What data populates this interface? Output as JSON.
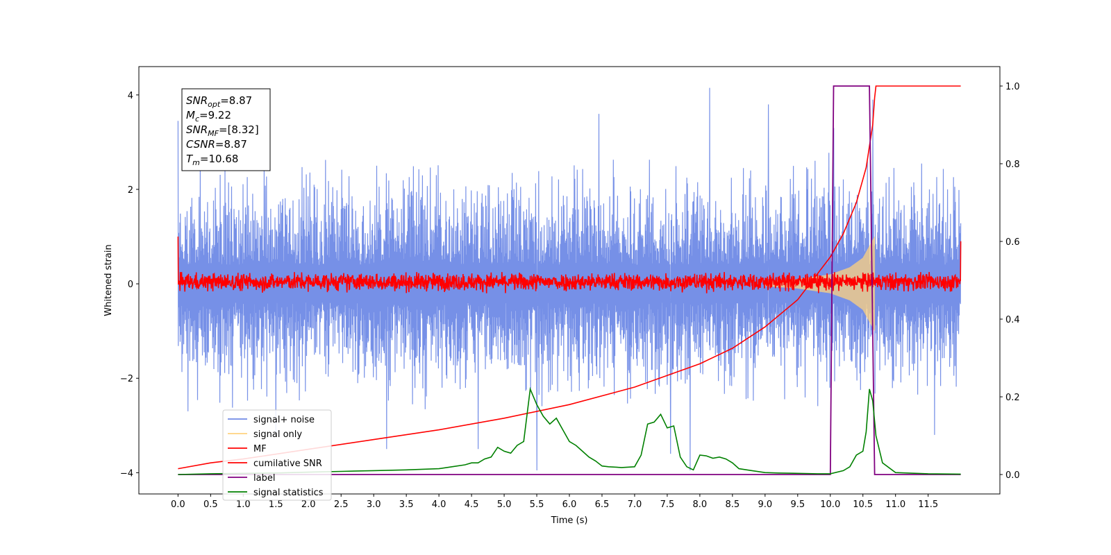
{
  "chart_data": {
    "type": "line",
    "xlabel": "Time (s)",
    "ylabel": "Whitened strain",
    "xlim": [
      -0.6,
      12.6
    ],
    "ylim": [
      -4.45,
      4.6
    ],
    "y2lim": [
      -0.05,
      1.05
    ],
    "x_ticks": [
      0.0,
      0.5,
      1.0,
      1.5,
      2.0,
      2.5,
      3.0,
      3.5,
      4.0,
      4.5,
      5.0,
      5.5,
      6.0,
      6.5,
      7.0,
      7.5,
      8.0,
      8.5,
      9.0,
      9.5,
      10.0,
      10.5,
      11.0,
      11.5
    ],
    "x_tick_labels": [
      "0.0",
      "0.5",
      "1.0",
      "1.5",
      "2.0",
      "2.5",
      "3.0",
      "3.5",
      "4.0",
      "4.5",
      "5.0",
      "5.5",
      "6.0",
      "6.5",
      "7.0",
      "7.5",
      "8.0",
      "8.5",
      "9.0",
      "9.5",
      "10.0",
      "10.5",
      "11.0",
      "11.5"
    ],
    "y_ticks": [
      -4,
      -2,
      0,
      2,
      4
    ],
    "y_tick_labels": [
      "−4",
      "−2",
      "0",
      "2",
      "4"
    ],
    "y2_ticks": [
      0.0,
      0.2,
      0.4,
      0.6,
      0.8,
      1.0
    ],
    "y2_tick_labels": [
      "0.0",
      "0.2",
      "0.4",
      "0.6",
      "0.8",
      "1.0"
    ],
    "annotation": [
      {
        "base": "SNR",
        "sub": "opt",
        "value": "=8.87"
      },
      {
        "base": "M",
        "sub": "c",
        "value": "=9.22"
      },
      {
        "base": "SNR",
        "sub": "MF",
        "value": "=[8.32]"
      },
      {
        "base": "CSNR",
        "sub": "",
        "value": "=8.87"
      },
      {
        "base": "T",
        "sub": "m",
        "value": "=10.68"
      }
    ],
    "legend": {
      "position": "lower-left",
      "entries": [
        {
          "label": "signal+ noise",
          "color": "#6f8ae6"
        },
        {
          "label": "signal only",
          "color": "#ffd27f"
        },
        {
          "label": "MF",
          "color": "#ff0000"
        },
        {
          "label": "cumilative SNR",
          "color": "#ff0000"
        },
        {
          "label": "label",
          "color": "#800080"
        },
        {
          "label": "signal statistics",
          "color": "#008000"
        }
      ]
    },
    "series": [
      {
        "name": "signal+ noise",
        "axis": "left",
        "color": "#6f8ae6",
        "x": [
          0.0,
          12.0
        ],
        "envelope_upper": [
          2.4,
          2.4
        ],
        "envelope_lower": [
          -2.2,
          -2.2
        ],
        "spikes": [
          [
            0.0,
            3.45
          ],
          [
            1.5,
            -3.2
          ],
          [
            3.2,
            -3.5
          ],
          [
            4.6,
            -3.5
          ],
          [
            5.5,
            -3.95
          ],
          [
            6.45,
            3.6
          ],
          [
            7.55,
            -3.6
          ],
          [
            7.85,
            -3.95
          ],
          [
            8.15,
            4.15
          ],
          [
            9.05,
            3.8
          ],
          [
            10.05,
            3.3
          ],
          [
            10.65,
            3.9
          ],
          [
            11.6,
            -3.2
          ]
        ]
      },
      {
        "name": "signal only",
        "axis": "left",
        "color": "#ffd27f",
        "x": [
          9.0,
          9.5,
          10.0,
          10.3,
          10.5,
          10.6,
          10.68
        ],
        "amplitude": [
          0.05,
          0.1,
          0.2,
          0.35,
          0.55,
          0.8,
          1.0
        ]
      },
      {
        "name": "MF",
        "axis": "left",
        "color": "#ff0000",
        "x": [
          0.0,
          12.0
        ],
        "envelope_upper": [
          0.25,
          0.25
        ],
        "envelope_lower": [
          -0.2,
          -0.2
        ],
        "endpoints": [
          [
            0.0,
            1.0
          ],
          [
            12.0,
            0.9
          ]
        ]
      },
      {
        "name": "cumilative SNR",
        "axis": "right",
        "color": "#ff0000",
        "x": [
          0.0,
          0.5,
          1.0,
          2.0,
          3.0,
          4.0,
          5.0,
          6.0,
          7.0,
          8.0,
          8.5,
          9.0,
          9.5,
          10.0,
          10.2,
          10.4,
          10.55,
          10.65,
          10.68,
          10.7,
          12.0
        ],
        "y": [
          0.015,
          0.03,
          0.04,
          0.065,
          0.09,
          0.115,
          0.145,
          0.18,
          0.225,
          0.285,
          0.325,
          0.38,
          0.45,
          0.56,
          0.62,
          0.7,
          0.79,
          0.9,
          0.97,
          1.0,
          1.0
        ]
      },
      {
        "name": "label",
        "axis": "right",
        "color": "#800080",
        "x": [
          0.0,
          10.0,
          10.05,
          10.6,
          10.68,
          12.0
        ],
        "y": [
          0.0,
          0.0,
          1.0,
          1.0,
          0.0,
          0.0
        ]
      },
      {
        "name": "signal statistics",
        "axis": "right",
        "color": "#008000",
        "x": [
          0.0,
          0.5,
          1.0,
          1.5,
          2.0,
          2.5,
          3.0,
          3.5,
          4.0,
          4.2,
          4.4,
          4.5,
          4.6,
          4.7,
          4.8,
          4.9,
          5.0,
          5.1,
          5.2,
          5.3,
          5.4,
          5.5,
          5.6,
          5.7,
          5.8,
          5.9,
          6.0,
          6.1,
          6.2,
          6.3,
          6.4,
          6.5,
          6.6,
          6.8,
          7.0,
          7.1,
          7.2,
          7.3,
          7.4,
          7.5,
          7.6,
          7.7,
          7.8,
          7.9,
          8.0,
          8.1,
          8.2,
          8.3,
          8.4,
          8.5,
          8.6,
          8.8,
          9.0,
          9.2,
          9.5,
          9.8,
          10.0,
          10.2,
          10.3,
          10.4,
          10.5,
          10.55,
          10.6,
          10.65,
          10.7,
          10.8,
          11.0,
          11.5,
          12.0
        ],
        "y": [
          0.0,
          0.002,
          0.003,
          0.004,
          0.006,
          0.008,
          0.01,
          0.012,
          0.015,
          0.02,
          0.025,
          0.03,
          0.03,
          0.04,
          0.045,
          0.07,
          0.06,
          0.055,
          0.075,
          0.085,
          0.22,
          0.18,
          0.15,
          0.13,
          0.145,
          0.115,
          0.085,
          0.075,
          0.06,
          0.045,
          0.035,
          0.022,
          0.02,
          0.018,
          0.02,
          0.05,
          0.13,
          0.135,
          0.155,
          0.12,
          0.125,
          0.045,
          0.02,
          0.012,
          0.05,
          0.048,
          0.042,
          0.045,
          0.04,
          0.03,
          0.015,
          0.01,
          0.005,
          0.004,
          0.003,
          0.002,
          0.002,
          0.01,
          0.02,
          0.05,
          0.06,
          0.11,
          0.22,
          0.19,
          0.1,
          0.03,
          0.005,
          0.002,
          0.001
        ]
      }
    ]
  }
}
